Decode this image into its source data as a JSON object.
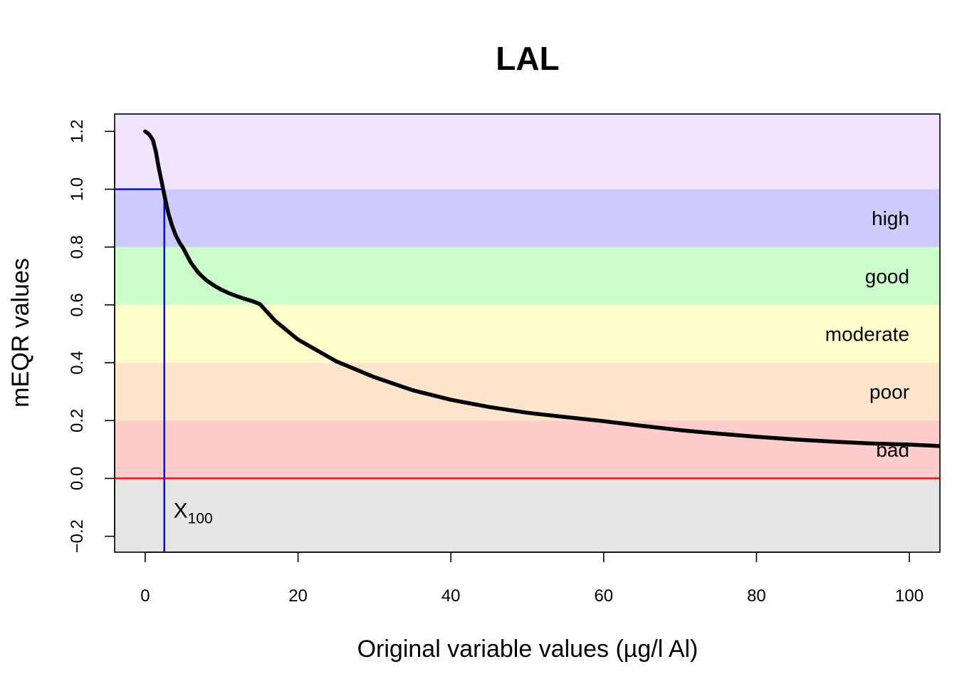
{
  "chart_data": {
    "type": "line",
    "title": "LAL",
    "xlabel": "Original variable values (µg/l Al)",
    "ylabel": "mEQR values",
    "xlim": [
      -4,
      104
    ],
    "ylim": [
      -0.255,
      1.26
    ],
    "x_ticks": [
      0,
      20,
      40,
      60,
      80,
      100
    ],
    "x_tick_labels": [
      "0",
      "20",
      "40",
      "60",
      "80",
      "100"
    ],
    "y_ticks": [
      -0.2,
      0.0,
      0.2,
      0.4,
      0.6,
      0.8,
      1.0,
      1.2
    ],
    "y_tick_labels": [
      "−0.2",
      "0.0",
      "0.2",
      "0.4",
      "0.6",
      "0.8",
      "1.0",
      "1.2"
    ],
    "grid": false,
    "bands": [
      {
        "from": 1.0,
        "to": 1.26,
        "label": "",
        "color": "#f1e4fe"
      },
      {
        "from": 0.8,
        "to": 1.0,
        "label": "high",
        "color": "#cccbfb"
      },
      {
        "from": 0.6,
        "to": 0.8,
        "label": "good",
        "color": "#ccfecb"
      },
      {
        "from": 0.4,
        "to": 0.6,
        "label": "moderate",
        "color": "#fefecb"
      },
      {
        "from": 0.2,
        "to": 0.4,
        "label": "poor",
        "color": "#fde5cb"
      },
      {
        "from": 0.0,
        "to": 0.2,
        "label": "bad",
        "color": "#fecccb"
      },
      {
        "from": -0.255,
        "to": 0.0,
        "label": "",
        "color": "#e5e5e5"
      }
    ],
    "series": [
      {
        "color": "#000000",
        "x": [
          0,
          0.5,
          1,
          1.4,
          1.8,
          2.2,
          2.5,
          3,
          3.5,
          4,
          4.5,
          5,
          6,
          7,
          8,
          9,
          10,
          11,
          12,
          13,
          14,
          15,
          17,
          20,
          25,
          30,
          35,
          40,
          45,
          50,
          55,
          60,
          65,
          70,
          75,
          80,
          85,
          90,
          95,
          100,
          104
        ],
        "y": [
          1.2,
          1.19,
          1.17,
          1.13,
          1.07,
          1.02,
          0.98,
          0.92,
          0.875,
          0.84,
          0.815,
          0.795,
          0.745,
          0.71,
          0.685,
          0.667,
          0.652,
          0.64,
          0.63,
          0.621,
          0.613,
          0.603,
          0.545,
          0.48,
          0.405,
          0.35,
          0.305,
          0.272,
          0.247,
          0.227,
          0.212,
          0.198,
          0.182,
          0.167,
          0.155,
          0.144,
          0.135,
          0.127,
          0.121,
          0.117,
          0.112
        ]
      }
    ],
    "reference_lines": [
      {
        "orientation": "horizontal",
        "y": 0.0,
        "color": "#ff0000"
      },
      {
        "orientation": "vertical",
        "x": 2.5,
        "y_top": 1.0,
        "color": "#0000ee"
      },
      {
        "orientation": "horizontal",
        "y": 1.0,
        "x_right": 2.5,
        "color": "#0000ee"
      }
    ],
    "annotations": [
      {
        "text": "X",
        "subscript": "100",
        "x": 3.7,
        "y": -0.135
      }
    ]
  }
}
